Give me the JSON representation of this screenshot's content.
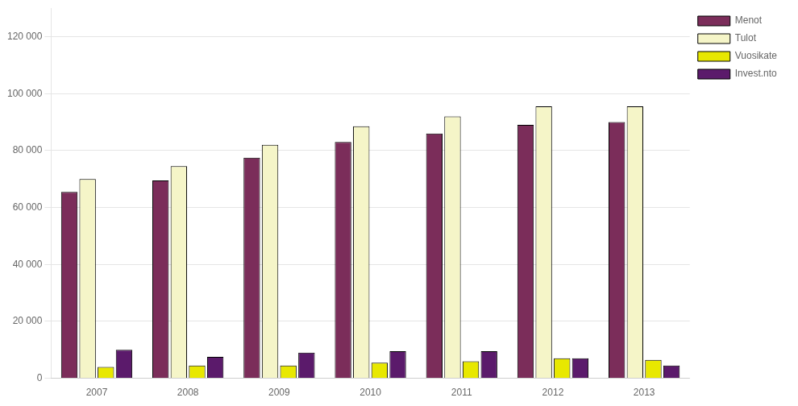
{
  "chart_data": {
    "type": "bar",
    "categories": [
      "2007",
      "2008",
      "2009",
      "2010",
      "2011",
      "2012",
      "2013"
    ],
    "series": [
      {
        "name": "Menot",
        "color": "#7b2d5a",
        "values": [
          65500,
          69500,
          77500,
          83000,
          86000,
          89000,
          90000
        ]
      },
      {
        "name": "Tulot",
        "color": "#f5f5c8",
        "values": [
          70000,
          74500,
          82000,
          88500,
          92000,
          95500,
          95500
        ]
      },
      {
        "name": "Vuosikate",
        "color": "#e8e800",
        "values": [
          4000,
          4500,
          4500,
          5500,
          6000,
          7000,
          6500
        ]
      },
      {
        "name": "Invest.nto",
        "color": "#5b1a6b",
        "values": [
          10000,
          7500,
          9000,
          9500,
          9500,
          7000,
          4500
        ]
      }
    ],
    "ylim": [
      0,
      130000
    ],
    "yticks": [
      0,
      {
        "value": 20000,
        "label": "20 000"
      },
      {
        "value": 40000,
        "label": "40 000"
      },
      {
        "value": 60000,
        "label": "60 000"
      },
      {
        "value": 80000,
        "label": "80 000"
      },
      {
        "value": 100000,
        "label": "100 000"
      },
      {
        "value": 120000,
        "label": "120 000"
      }
    ],
    "grid": true,
    "legend": "right"
  }
}
